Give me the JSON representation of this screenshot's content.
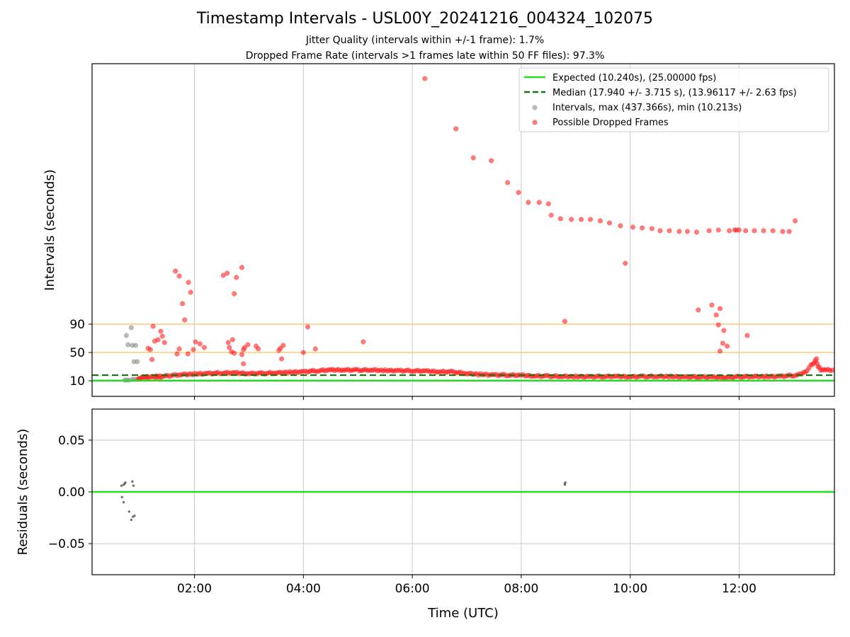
{
  "chart_data": {
    "type": "scatter",
    "title": "Timestamp Intervals - USL00Y_20241216_004324_102075",
    "subtitles": [
      "Jitter Quality (intervals within +/-1 frame): 1.7%",
      "Dropped Frame Rate (intervals >1 frames late within 50 FF files): 97.3%"
    ],
    "xlabel": "Time (UTC)",
    "x_ticks": [
      "02:00",
      "04:00",
      "06:00",
      "08:00",
      "10:00",
      "12:00"
    ],
    "x_tick_hours": [
      2,
      4,
      6,
      8,
      10,
      12
    ],
    "xlim_hours": [
      0.12,
      13.75
    ],
    "colors": {
      "expected": "#22dd22",
      "median": "#117711",
      "intervals": "#8a8a8a",
      "dropped": "#ff2020",
      "threshold": "#ffc870",
      "grid": "#c8c8c8"
    },
    "top": {
      "ylabel": "Intervals (seconds)",
      "y_ticks": [
        10,
        50,
        90
      ],
      "ylim": [
        -12,
        458
      ],
      "expected_value": 10.24,
      "median_value": 17.94,
      "threshold_lines": [
        50,
        90
      ],
      "legend": {
        "position": "upper right",
        "entries": [
          "Expected (10.240s), (25.00000 fps)",
          "Median (17.940 +/- 3.715 s), (13.96117 +/- 2.63 fps)",
          "Intervals, max (437.366s), min (10.213s)",
          "Possible Dropped Frames"
        ]
      },
      "series": [
        {
          "name": "Intervals, max (437.366s), min (10.213s)",
          "points": [
            [
              0.75,
              74
            ],
            [
              0.78,
              61
            ],
            [
              0.84,
              85
            ],
            [
              0.86,
              60
            ],
            [
              0.89,
              37
            ],
            [
              0.92,
              60
            ],
            [
              0.95,
              37
            ],
            [
              0.72,
              11
            ],
            [
              0.76,
              11
            ],
            [
              0.8,
              11
            ],
            [
              0.86,
              12
            ],
            [
              0.9,
              12
            ]
          ]
        },
        {
          "name": "Possible Dropped Frames",
          "points": [
            [
              6.23,
              437
            ],
            [
              6.8,
              366
            ],
            [
              7.12,
              325
            ],
            [
              7.45,
              321
            ],
            [
              7.75,
              290
            ],
            [
              7.95,
              276
            ],
            [
              8.13,
              262
            ],
            [
              8.33,
              262
            ],
            [
              8.5,
              260
            ],
            [
              8.55,
              244
            ],
            [
              8.72,
              239
            ],
            [
              8.92,
              238
            ],
            [
              9.1,
              238
            ],
            [
              9.27,
              238
            ],
            [
              9.45,
              236
            ],
            [
              9.62,
              233
            ],
            [
              9.82,
              229
            ],
            [
              9.91,
              176
            ],
            [
              10.05,
              227
            ],
            [
              10.22,
              226
            ],
            [
              10.4,
              225
            ],
            [
              10.55,
              222
            ],
            [
              10.72,
              222
            ],
            [
              10.9,
              221
            ],
            [
              11.05,
              221
            ],
            [
              11.22,
              220
            ],
            [
              11.45,
              222
            ],
            [
              11.62,
              223
            ],
            [
              11.82,
              222
            ],
            [
              11.92,
              223
            ],
            [
              11.95,
              223
            ],
            [
              12.12,
              222
            ],
            [
              12.28,
              222
            ],
            [
              12.45,
              222
            ],
            [
              12.62,
              222
            ],
            [
              12.8,
              221
            ],
            [
              12.92,
              221
            ],
            [
              13.03,
              236
            ],
            [
              12.0,
              223
            ],
            [
              11.25,
              110
            ],
            [
              11.5,
              117
            ],
            [
              11.58,
              103
            ],
            [
              11.62,
              89
            ],
            [
              11.65,
              112
            ],
            [
              11.7,
              63
            ],
            [
              11.72,
              81
            ],
            [
              11.78,
              59
            ],
            [
              11.65,
              52
            ],
            [
              12.15,
              74
            ],
            [
              8.8,
              94
            ],
            [
              5.1,
              65
            ],
            [
              4.22,
              55
            ],
            [
              4.08,
              86
            ],
            [
              4.0,
              50
            ],
            [
              3.63,
              60
            ],
            [
              3.58,
              56
            ],
            [
              3.6,
              41
            ],
            [
              3.55,
              53
            ],
            [
              3.13,
              59
            ],
            [
              3.17,
              55
            ],
            [
              2.98,
              61
            ],
            [
              2.92,
              57
            ],
            [
              2.9,
              54
            ],
            [
              2.9,
              34
            ],
            [
              2.87,
              47
            ],
            [
              2.87,
              170
            ],
            [
              2.73,
              133
            ],
            [
              2.77,
              156
            ],
            [
              2.62,
              64
            ],
            [
              2.64,
              57
            ],
            [
              2.6,
              162
            ],
            [
              2.53,
              159
            ],
            [
              2.7,
              68
            ],
            [
              2.73,
              49
            ],
            [
              2.68,
              51
            ],
            [
              2.1,
              62
            ],
            [
              2.02,
              65
            ],
            [
              2.18,
              57
            ],
            [
              1.98,
              54
            ],
            [
              1.93,
              135
            ],
            [
              1.89,
              149
            ],
            [
              1.78,
              119
            ],
            [
              1.82,
              96
            ],
            [
              1.88,
              48
            ],
            [
              1.72,
              158
            ],
            [
              1.65,
              165
            ],
            [
              1.72,
              55
            ],
            [
              1.68,
              48
            ],
            [
              1.45,
              64
            ],
            [
              1.38,
              80
            ],
            [
              1.41,
              73
            ],
            [
              1.33,
              68
            ],
            [
              1.27,
              66
            ],
            [
              1.24,
              87
            ],
            [
              1.19,
              54
            ],
            [
              1.15,
              56
            ],
            [
              1.22,
              40
            ],
            [
              1.3,
              17
            ],
            [
              1.36,
              12
            ],
            [
              1.12,
              14
            ],
            [
              1.05,
              15
            ],
            [
              0.98,
              13
            ]
          ],
          "band": [
            [
              0.95,
              13
            ],
            [
              1.1,
              15
            ],
            [
              1.3,
              16
            ],
            [
              1.5,
              17
            ],
            [
              1.75,
              18.5
            ],
            [
              2.0,
              19.5
            ],
            [
              2.25,
              20.5
            ],
            [
              2.5,
              21
            ],
            [
              2.75,
              21
            ],
            [
              3.0,
              20.5
            ],
            [
              3.25,
              20.5
            ],
            [
              3.5,
              21
            ],
            [
              3.75,
              22
            ],
            [
              4.0,
              23
            ],
            [
              4.25,
              24
            ],
            [
              4.5,
              25
            ],
            [
              4.75,
              25.5
            ],
            [
              5.0,
              25
            ],
            [
              5.25,
              25
            ],
            [
              5.5,
              24.5
            ],
            [
              5.75,
              24.5
            ],
            [
              6.0,
              24
            ],
            [
              6.25,
              23.5
            ],
            [
              6.5,
              23
            ],
            [
              6.75,
              22.5
            ],
            [
              7.0,
              20
            ],
            [
              7.25,
              19
            ],
            [
              7.5,
              18.5
            ],
            [
              7.75,
              18
            ],
            [
              8.0,
              17.5
            ],
            [
              8.25,
              17
            ],
            [
              8.5,
              16.5
            ],
            [
              8.75,
              16
            ],
            [
              9.0,
              16
            ],
            [
              9.25,
              16
            ],
            [
              9.5,
              16
            ],
            [
              9.75,
              16
            ],
            [
              10.0,
              16
            ],
            [
              10.25,
              16
            ],
            [
              10.5,
              16
            ],
            [
              10.75,
              16
            ],
            [
              11.0,
              15.5
            ],
            [
              11.25,
              15.5
            ],
            [
              11.5,
              15
            ],
            [
              11.75,
              15
            ],
            [
              12.0,
              15.5
            ],
            [
              12.25,
              16
            ],
            [
              12.5,
              16
            ],
            [
              12.75,
              16.5
            ],
            [
              13.0,
              17.5
            ],
            [
              13.15,
              19
            ],
            [
              13.25,
              25
            ],
            [
              13.32,
              32
            ],
            [
              13.38,
              36
            ],
            [
              13.42,
              40
            ],
            [
              13.45,
              30
            ],
            [
              13.5,
              26
            ],
            [
              13.6,
              25
            ],
            [
              13.75,
              25
            ]
          ]
        }
      ]
    },
    "bottom": {
      "ylabel": "Residuals (seconds)",
      "y_ticks": [
        "0.05",
        "0.00",
        "−0.05"
      ],
      "y_tick_values": [
        0.05,
        0.0,
        -0.05
      ],
      "ylim": [
        -0.08,
        0.08
      ],
      "zero_line": 0.0,
      "points": [
        [
          0.66,
          0.006
        ],
        [
          0.7,
          0.007
        ],
        [
          0.72,
          0.008
        ],
        [
          0.73,
          0.009
        ],
        [
          0.67,
          -0.005
        ],
        [
          0.7,
          -0.01
        ],
        [
          0.8,
          -0.019
        ],
        [
          0.86,
          0.01
        ],
        [
          0.88,
          0.006
        ],
        [
          0.84,
          -0.027
        ],
        [
          0.87,
          -0.024
        ],
        [
          0.9,
          -0.023
        ],
        [
          8.8,
          0.007
        ],
        [
          8.81,
          0.009
        ],
        [
          8.8,
          0.008
        ]
      ]
    }
  }
}
